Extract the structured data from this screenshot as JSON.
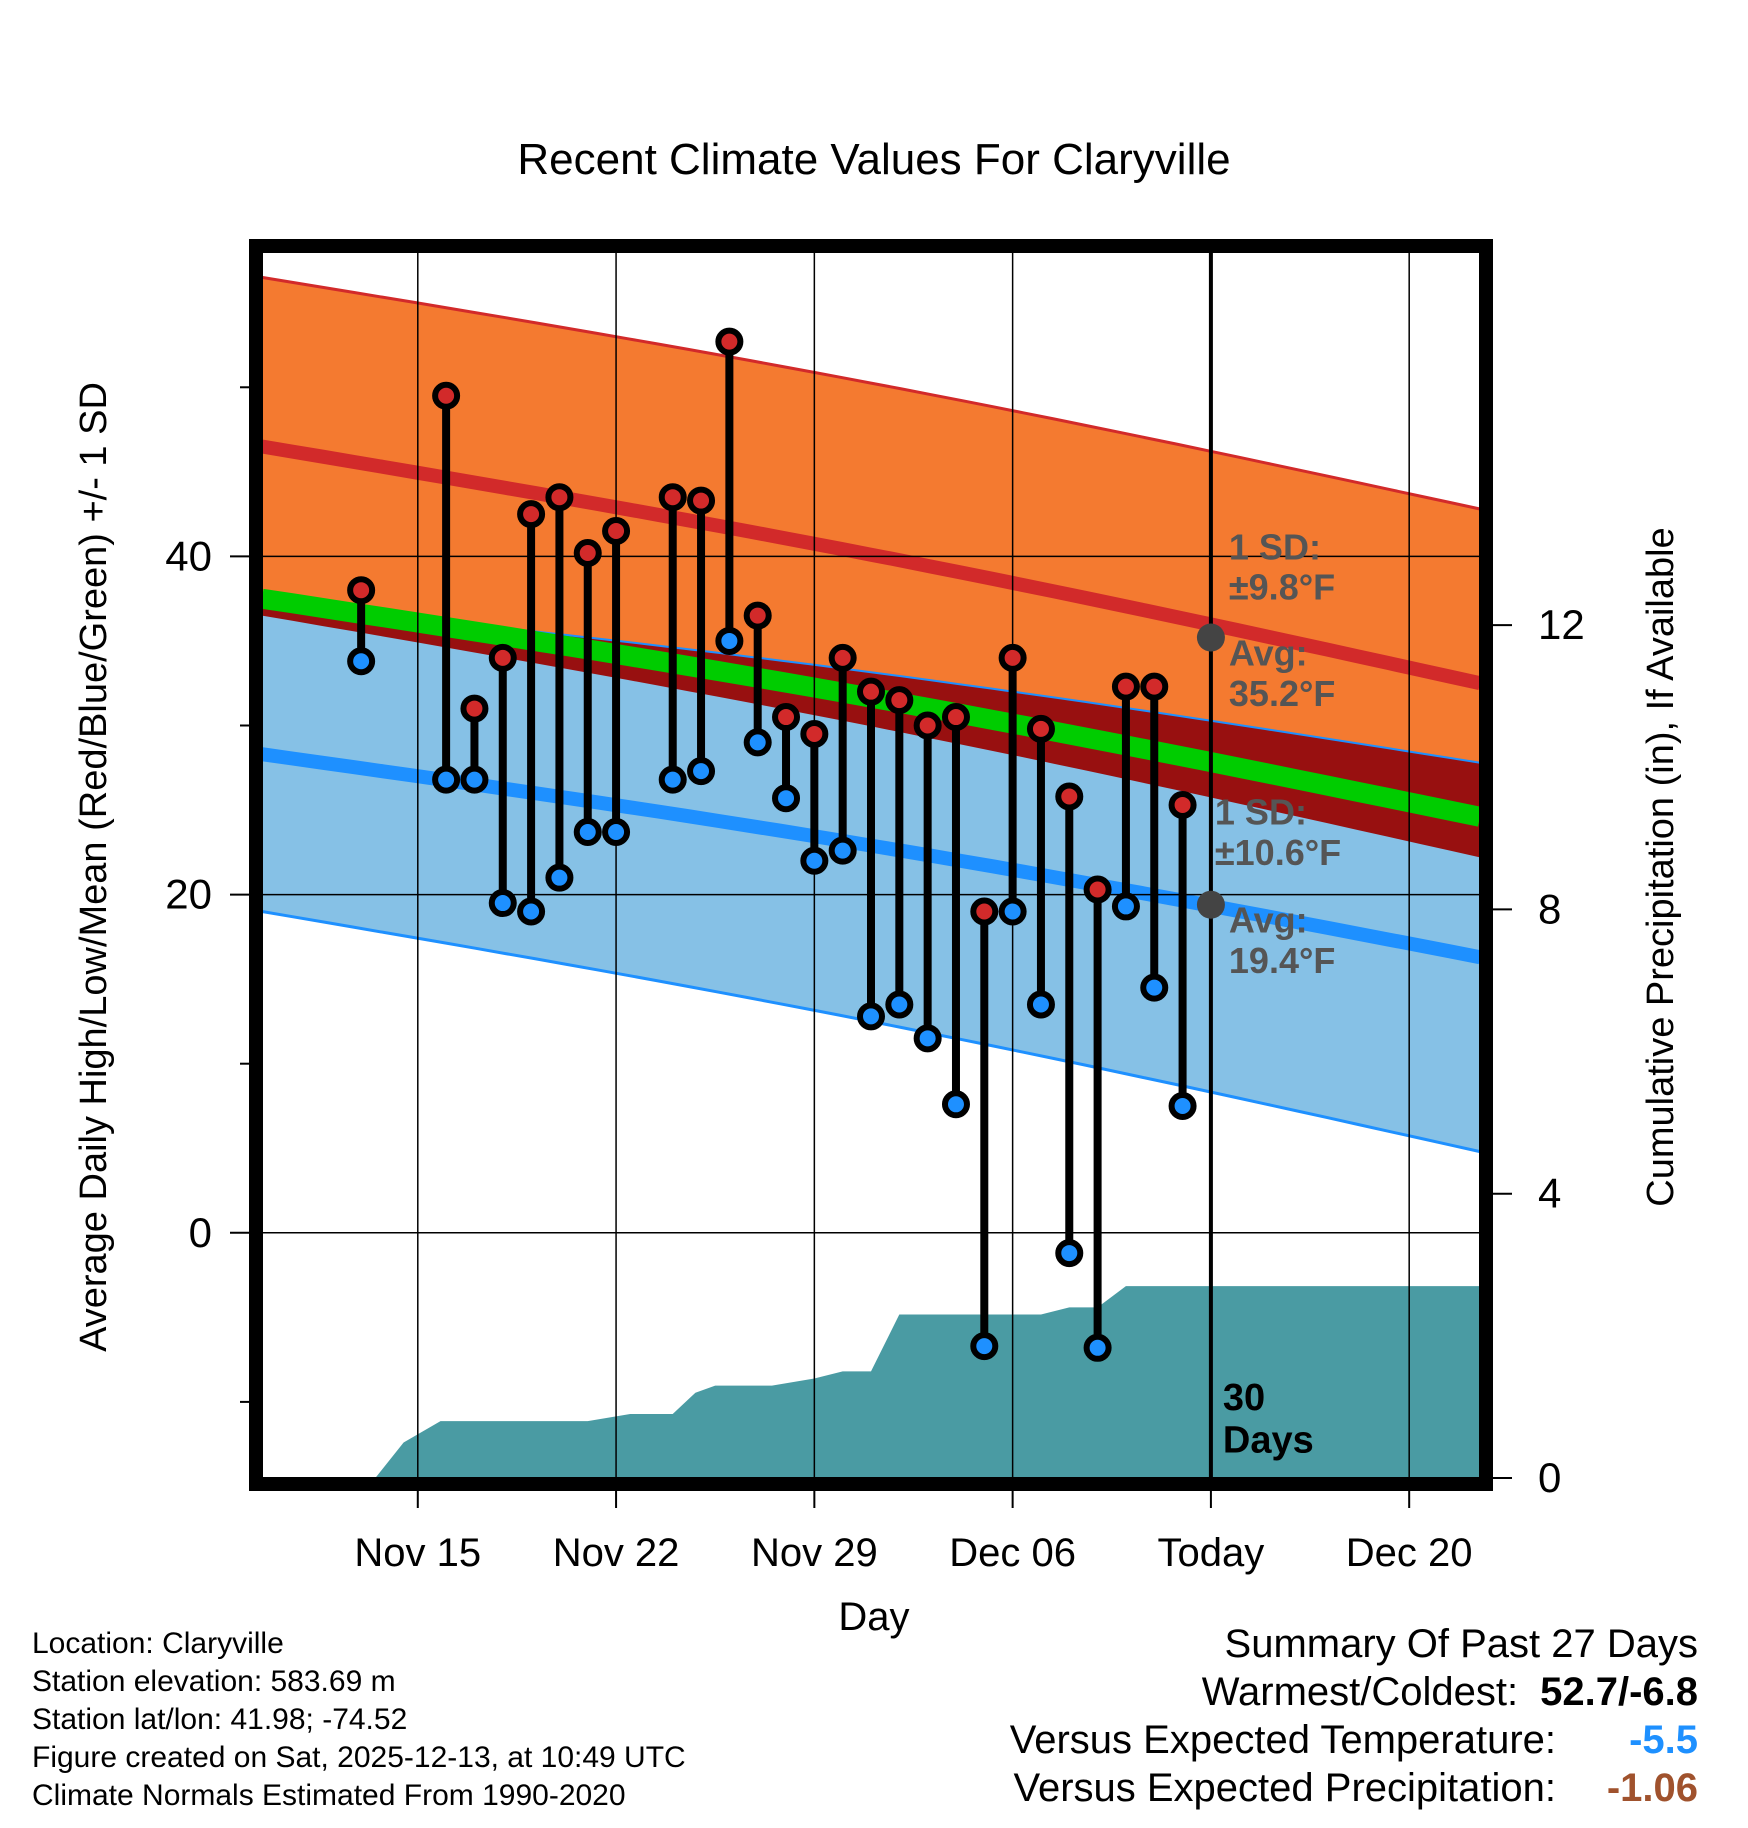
{
  "chart_data": {
    "type": "line",
    "title": "Recent Climate Values For Claryville",
    "xlabel": "Day",
    "ylabel": "Average Daily High/Low/Mean (Red/Blue/Green) +/- 1 SD",
    "y2label": "Cumulative Precipitation (in), If Available",
    "x_range_days": [
      -33.5,
      9.5
    ],
    "ylim": [
      -14.5,
      58
    ],
    "y_ticks": [
      0,
      20,
      40
    ],
    "y2_ticks": [
      0,
      4,
      8,
      12
    ],
    "y2lim": [
      0,
      17.25
    ],
    "x_ticks": [
      {
        "day": -28,
        "label": "Nov 15"
      },
      {
        "day": -21,
        "label": "Nov 22"
      },
      {
        "day": -14,
        "label": "Nov 29"
      },
      {
        "day": -7,
        "label": "Dec 06"
      },
      {
        "day": 0,
        "label": "Today"
      },
      {
        "day": 7,
        "label": "Dec 20"
      }
    ],
    "normals": {
      "high_mean": {
        "start": 46.5,
        "end": 32.5
      },
      "high_sd_upper": {
        "start": 56.5,
        "end": 42.8
      },
      "high_sd_lower": {
        "start": 36.5,
        "end": 22.2
      },
      "low_mean": {
        "start": 28.3,
        "end": 16.3
      },
      "low_sd_upper": {
        "start": 37.3,
        "end": 27.8
      },
      "low_sd_lower": {
        "start": 19.0,
        "end": 4.8
      },
      "mean": {
        "start": 37.5,
        "end": 24.6
      }
    },
    "series": [
      {
        "name": "Daily High",
        "color": "#d22a2a",
        "days": [
          -30,
          -27,
          -26,
          -25,
          -24,
          -23,
          -22,
          -21,
          -19,
          -18,
          -17,
          -16,
          -15,
          -14,
          -13,
          -12,
          -11,
          -10,
          -9,
          -8,
          -7,
          -6,
          -5,
          -4,
          -3,
          -2,
          -1
        ],
        "values": [
          38.0,
          49.5,
          31.0,
          34.0,
          42.5,
          43.5,
          40.2,
          41.5,
          43.5,
          43.3,
          52.7,
          36.5,
          30.5,
          29.5,
          34.0,
          32.0,
          31.5,
          30.0,
          30.5,
          19.0,
          34.0,
          29.8,
          25.8,
          20.3,
          32.3,
          32.3,
          25.3
        ]
      },
      {
        "name": "Daily Low",
        "color": "#1e90ff",
        "days": [
          -30,
          -27,
          -26,
          -25,
          -24,
          -23,
          -22,
          -21,
          -19,
          -18,
          -17,
          -16,
          -15,
          -14,
          -13,
          -12,
          -11,
          -10,
          -9,
          -8,
          -7,
          -6,
          -5,
          -4,
          -3,
          -2,
          -1
        ],
        "values": [
          33.8,
          26.8,
          26.8,
          19.5,
          19.0,
          21.0,
          23.7,
          23.7,
          26.8,
          27.3,
          35.0,
          29.0,
          25.7,
          22.0,
          22.6,
          12.8,
          13.5,
          11.5,
          7.6,
          -6.7,
          19.0,
          13.5,
          -1.2,
          -6.8,
          19.3,
          14.5,
          7.5
        ]
      },
      {
        "name": "Cumulative Precipitation",
        "days": [
          -31.5,
          -30.5,
          -29.5,
          -28.5,
          -27.2,
          -26,
          -24,
          -22,
          -20.5,
          -19,
          -18.2,
          -17.5,
          -15.5,
          -14,
          -13,
          -12,
          -11,
          -10,
          -9,
          -8,
          -7,
          -6,
          -5,
          -4,
          -3,
          -2,
          -1,
          0,
          9.5
        ],
        "values": [
          0,
          0,
          0,
          0.5,
          0.8,
          0.8,
          0.8,
          0.8,
          0.9,
          0.9,
          1.2,
          1.3,
          1.3,
          1.4,
          1.5,
          1.5,
          2.3,
          2.3,
          2.3,
          2.3,
          2.3,
          2.3,
          2.4,
          2.4,
          2.7,
          2.7,
          2.7,
          2.7,
          2.7
        ]
      }
    ],
    "annotations": [
      {
        "id": "high-sd",
        "lines": [
          "1 SD:",
          "±9.8°F"
        ]
      },
      {
        "id": "high-avg",
        "lines": [
          "Avg:",
          "35.2°F"
        ],
        "value": 35.2
      },
      {
        "id": "low-sd",
        "lines": [
          "1 SD:",
          "±10.6°F"
        ]
      },
      {
        "id": "low-avg",
        "lines": [
          "Avg:",
          "19.4°F"
        ],
        "value": 19.4
      },
      {
        "id": "window",
        "lines": [
          "30",
          "Days"
        ]
      }
    ]
  },
  "footer": {
    "location": "Location: Claryville",
    "elevation": "Station elevation: 583.69 m",
    "latlon": "Station lat/lon: 41.98; -74.52",
    "created": "Figure created on Sat, 2025-12-13, at 10:49 UTC",
    "normals": "Climate Normals Estimated From 1990-2020"
  },
  "summary": {
    "title": "Summary Of Past 27 Days",
    "warm_cold_label": "Warmest/Coldest:",
    "warm_cold_value": "52.7/-6.8",
    "temp_label": "Versus Expected Temperature:",
    "temp_value": "-5.5",
    "temp_color": "#1e90ff",
    "precip_label": "Versus Expected Precipitation:",
    "precip_value": "-1.06",
    "precip_color": "#a0522d"
  },
  "colors": {
    "high_band": "#f47a30",
    "high_line": "#d22a2a",
    "low_band": "#86c1e6",
    "low_line": "#1e90ff",
    "mean_line": "#00cc00",
    "overlap": "#981010",
    "precip": "#4a9ba3",
    "annotation": "#555555"
  }
}
